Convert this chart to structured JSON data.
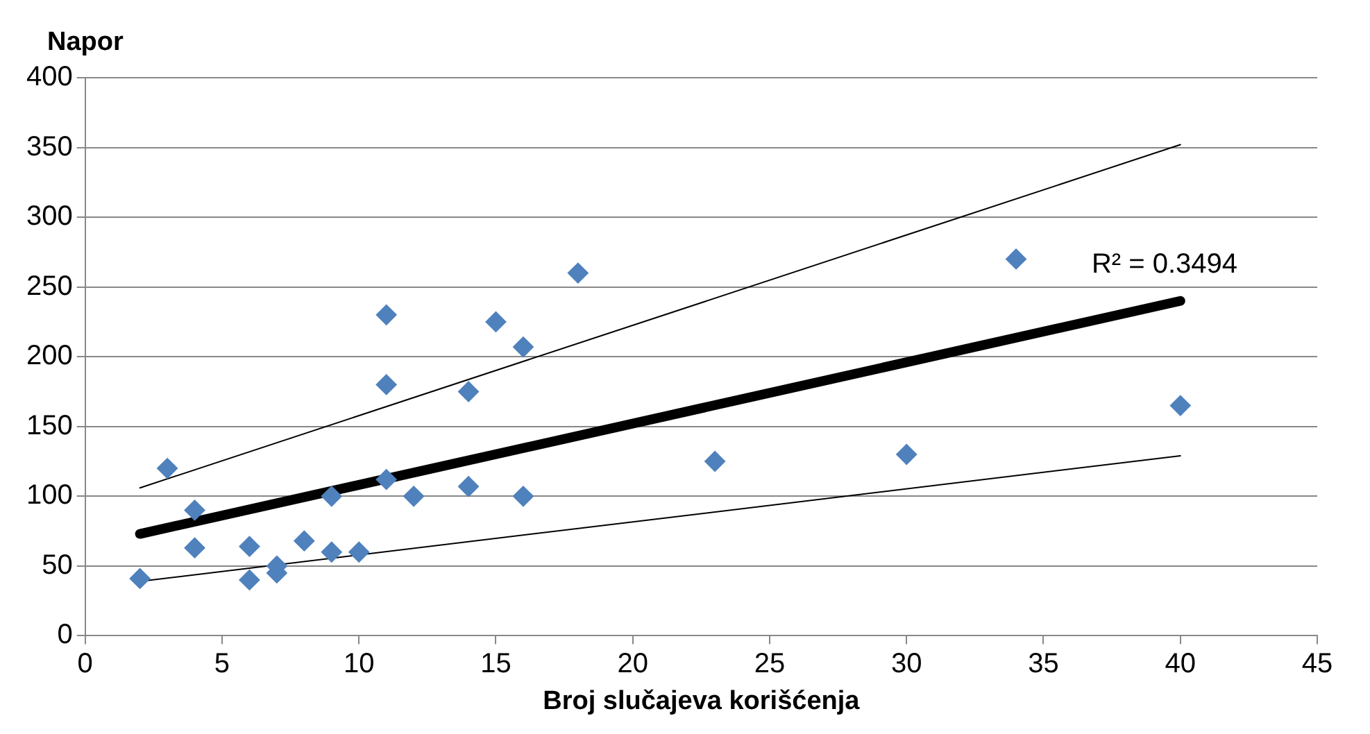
{
  "chart_data": {
    "type": "scatter",
    "xlabel": "Broj slučajeva korišćenja",
    "ylabel": "Napor",
    "xlim": [
      0,
      45
    ],
    "xticks": [
      0,
      5,
      10,
      15,
      20,
      25,
      30,
      35,
      40,
      45
    ],
    "ylim": [
      0,
      400
    ],
    "yticks": [
      0,
      50,
      100,
      150,
      200,
      250,
      300,
      350,
      400
    ],
    "grid": "y",
    "legend": false,
    "series": [
      {
        "type": "scatter",
        "marker": "diamond",
        "color": "#4f81bd",
        "x": [
          2,
          3,
          4,
          4,
          6,
          6,
          7,
          7,
          8,
          9,
          9,
          10,
          11,
          11,
          11,
          12,
          14,
          14,
          15,
          16,
          16,
          18,
          23,
          30,
          34,
          40
        ],
        "values": [
          41,
          120,
          90,
          63,
          64,
          40,
          50,
          45,
          68,
          100,
          60,
          60,
          230,
          180,
          112,
          100,
          175,
          107,
          225,
          207,
          100,
          260,
          125,
          130,
          270,
          165
        ]
      },
      {
        "type": "line",
        "marker": "none",
        "color": "#000000",
        "x": [
          2,
          40
        ],
        "values": [
          73,
          240
        ]
      },
      {
        "type": "line",
        "marker": "none",
        "color": "#000000",
        "x": [
          2,
          40
        ],
        "values": [
          106,
          352
        ]
      },
      {
        "type": "line",
        "marker": "none",
        "color": "#000000",
        "x": [
          2,
          40
        ],
        "values": [
          39,
          129
        ]
      }
    ],
    "annotations": [
      "R² = 0.3494"
    ]
  }
}
